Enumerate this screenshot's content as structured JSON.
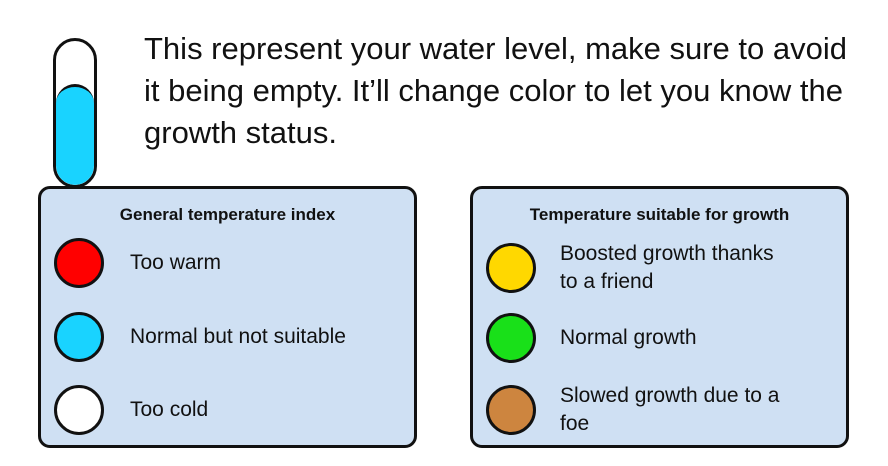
{
  "water_gauge": {
    "level": 0.7,
    "fill_color": "#19d3ff",
    "description": "This represent your water level, make sure to avoid it being empty. It’ll change color to let you know the growth status."
  },
  "general_index": {
    "title": "General temperature index",
    "items": [
      {
        "color": "#ff0000",
        "label": "Too warm"
      },
      {
        "color": "#19d3ff",
        "label": "Normal but not suitable"
      },
      {
        "color": "#ffffff",
        "label": "Too cold"
      }
    ]
  },
  "growth_index": {
    "title": "Temperature suitable for growth",
    "items": [
      {
        "color": "#ffd800",
        "label_line1": "Boosted growth thanks",
        "label_line2": "to a friend"
      },
      {
        "color": "#19e019",
        "label_line1": "Normal growth",
        "label_line2": ""
      },
      {
        "color": "#cd853f",
        "label_line1": "Slowed growth due to a",
        "label_line2": "foe"
      }
    ]
  },
  "colors": {
    "panel_bg": "#cfe0f3",
    "border": "#111111"
  }
}
